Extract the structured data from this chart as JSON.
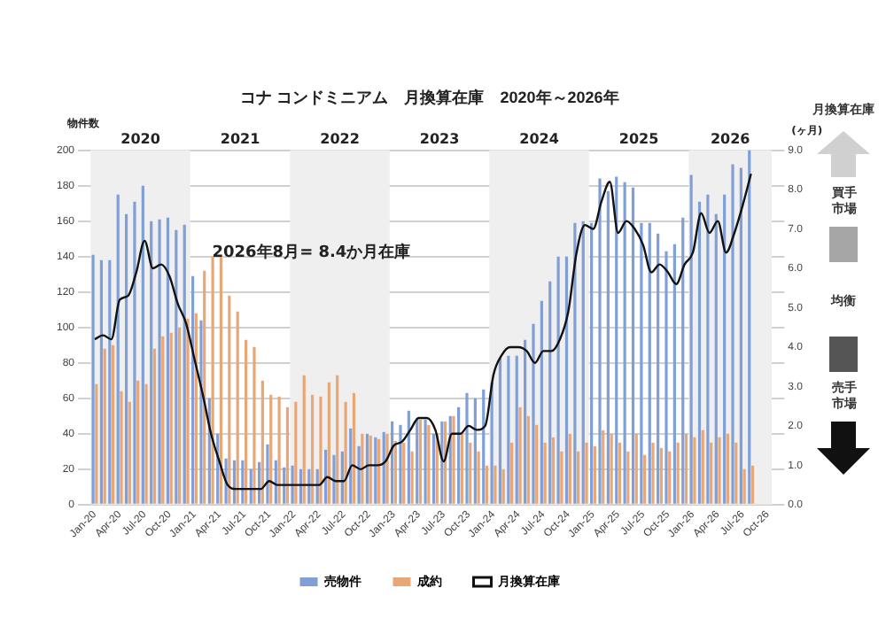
{
  "chart_data": {
    "type": "bar",
    "title": "コナ コンドミニアム　月換算在庫　2020年～2026年",
    "ylabel": "物件数",
    "y2label": "(ヶ月)",
    "annotations": [
      "2026年8月= 8.4か月在庫",
      "月換算在庫",
      "買手市場",
      "均衡",
      "売手市場",
      "2021",
      "2023",
      "2025"
    ],
    "x": [
      "2020-01",
      "2020-02",
      "2020-03",
      "2020-04",
      "2020-05",
      "2020-06",
      "2020-07",
      "2020-08",
      "2020-09",
      "2020-10",
      "2020-11",
      "2020-12",
      "2021-01",
      "2021-02",
      "2021-03",
      "2021-04",
      "2021-05",
      "2021-06",
      "2021-07",
      "2021-08",
      "2021-09",
      "2021-10",
      "2021-11",
      "2021-12",
      "2022-01",
      "2022-02",
      "2022-03",
      "2022-04",
      "2022-05",
      "2022-06",
      "2022-07",
      "2022-08",
      "2022-09",
      "2022-10",
      "2022-11",
      "2022-12",
      "2023-01",
      "2023-02",
      "2023-03",
      "2023-04",
      "2023-05",
      "2023-06",
      "2023-07",
      "2023-08",
      "2023-09",
      "2023-10",
      "2023-11",
      "2023-12",
      "2024-01",
      "2024-02",
      "2024-03",
      "2024-04",
      "2024-05",
      "2024-06",
      "2024-07",
      "2024-08",
      "2024-09",
      "2024-10",
      "2024-11",
      "2024-12",
      "2025-01",
      "2025-02",
      "2025-03",
      "2025-04",
      "2025-05",
      "2025-06",
      "2025-07",
      "2025-08",
      "2025-09",
      "2025-10",
      "2025-11",
      "2025-12",
      "2026-01",
      "2026-02",
      "2026-03",
      "2026-04",
      "2026-05",
      "2026-06",
      "2026-07",
      "2026-08"
    ],
    "series": [
      {
        "name": "売物件",
        "color": "#7f9fd6",
        "values": [
          141,
          138,
          138,
          175,
          164,
          171,
          180,
          160,
          161,
          162,
          155,
          158,
          129,
          104,
          60,
          40,
          26,
          25,
          25,
          20,
          24,
          34,
          25,
          21,
          22,
          20,
          20,
          20,
          31,
          28,
          30,
          43,
          33,
          40,
          38,
          41,
          47,
          45,
          53,
          49,
          48,
          40,
          47,
          50,
          55,
          63,
          60,
          65,
          69,
          83,
          84,
          84,
          93,
          102,
          115,
          126,
          140,
          140,
          159,
          160,
          159,
          184,
          177,
          185,
          182,
          179,
          159,
          159,
          153,
          143,
          147,
          162,
          186,
          171,
          175,
          164,
          175,
          192,
          190,
          200
        ]
      },
      {
        "name": "成約",
        "color": "#e9a677",
        "values": [
          68,
          88,
          90,
          64,
          58,
          70,
          68,
          88,
          95,
          97,
          100,
          105,
          108,
          132,
          140,
          141,
          118,
          109,
          93,
          89,
          70,
          62,
          61,
          55,
          58,
          73,
          62,
          61,
          69,
          73,
          58,
          63,
          40,
          39,
          37,
          40,
          36,
          35,
          30,
          48,
          45,
          40,
          47,
          50,
          40,
          35,
          30,
          22,
          22,
          20,
          35,
          55,
          50,
          45,
          35,
          38,
          30,
          40,
          30,
          35,
          33,
          42,
          40,
          35,
          30,
          40,
          28,
          35,
          32,
          30,
          35,
          40,
          38,
          42,
          35,
          38,
          40,
          35,
          20,
          22
        ]
      },
      {
        "name": "月換算在庫",
        "type": "line",
        "axis": "y2",
        "color": "#111111",
        "values": [
          4.2,
          4.3,
          4.2,
          5.2,
          5.3,
          5.9,
          6.7,
          6.0,
          6.1,
          5.8,
          5.1,
          4.6,
          3.7,
          2.8,
          1.8,
          1.1,
          0.5,
          0.4,
          0.4,
          0.4,
          0.4,
          0.6,
          0.5,
          0.5,
          0.5,
          0.5,
          0.5,
          0.5,
          0.7,
          0.6,
          0.6,
          1.0,
          0.9,
          1.0,
          1.0,
          1.1,
          1.5,
          1.6,
          1.9,
          2.2,
          2.2,
          1.9,
          1.1,
          1.8,
          1.8,
          2.0,
          1.9,
          2.0,
          3.3,
          3.8,
          4.0,
          4.0,
          3.9,
          3.6,
          3.9,
          3.9,
          4.2,
          4.9,
          6.4,
          7.1,
          7.0,
          7.7,
          8.2,
          6.9,
          7.2,
          7.0,
          6.6,
          5.9,
          6.1,
          5.9,
          5.6,
          6.1,
          6.4,
          7.4,
          6.9,
          7.2,
          6.4,
          6.9,
          7.6,
          8.4
        ]
      }
    ],
    "xlim": [
      "2020-01-01",
      "2026-11-01"
    ],
    "xticks": [
      {
        "value": "2020-01",
        "label": "Jan-20"
      },
      {
        "value": "2020-04",
        "label": "Apr-20"
      },
      {
        "value": "2020-07",
        "label": "Jul-20"
      },
      {
        "value": "2020-10",
        "label": "Oct-20"
      },
      {
        "value": "2021-01",
        "label": "Jan-21"
      },
      {
        "value": "2021-04",
        "label": "Apr-21"
      },
      {
        "value": "2021-07",
        "label": "Jul-21"
      },
      {
        "value": "2021-10",
        "label": "Oct-21"
      },
      {
        "value": "2022-01",
        "label": "Jan-22"
      },
      {
        "value": "2022-04",
        "label": "Apr-22"
      },
      {
        "value": "2022-07",
        "label": "Jul-22"
      },
      {
        "value": "2022-10",
        "label": "Oct-22"
      },
      {
        "value": "2023-01",
        "label": "Jan-23"
      },
      {
        "value": "2023-04",
        "label": "Apr-23"
      },
      {
        "value": "2023-07",
        "label": "Jul-23"
      },
      {
        "value": "2023-10",
        "label": "Oct-23"
      },
      {
        "value": "2024-01",
        "label": "Jan-24"
      },
      {
        "value": "2024-04",
        "label": "Apr-24"
      },
      {
        "value": "2024-07",
        "label": "Jul-24"
      },
      {
        "value": "2024-10",
        "label": "Oct-24"
      },
      {
        "value": "2025-01",
        "label": "Jan-25"
      },
      {
        "value": "2025-04",
        "label": "Apr-25"
      },
      {
        "value": "2025-07",
        "label": "Jul-25"
      },
      {
        "value": "2025-10",
        "label": "Oct-25"
      },
      {
        "value": "2026-01",
        "label": "Jan-26"
      },
      {
        "value": "2026-04",
        "label": "Apr-26"
      },
      {
        "value": "2026-07",
        "label": "Jul-26"
      },
      {
        "value": "2026-10",
        "label": "Oct-26"
      }
    ],
    "ylim": [
      0,
      200
    ],
    "yticks": [
      0,
      20,
      40,
      60,
      80,
      100,
      120,
      140,
      160,
      180,
      200
    ],
    "y2lim": [
      0,
      9
    ],
    "y2ticks": [
      {
        "value": 0,
        "label": "0.0"
      },
      {
        "value": 1,
        "label": "1.0"
      },
      {
        "value": 2,
        "label": "2.0"
      },
      {
        "value": 3,
        "label": "3.0"
      },
      {
        "value": 4,
        "label": "4.0"
      },
      {
        "value": 5,
        "label": "5.0"
      },
      {
        "value": 6,
        "label": "6.0"
      },
      {
        "value": 7,
        "label": "7.0"
      },
      {
        "value": 8,
        "label": "8.0"
      },
      {
        "value": 9,
        "label": "9.0"
      }
    ],
    "bands": [
      {
        "axis": "x",
        "from": "2020-01-01",
        "to": "2021-01-01",
        "label": "2020",
        "color": "#efefef"
      },
      {
        "axis": "x",
        "from": "2022-01-01",
        "to": "2023-01-01",
        "label": "2022",
        "color": "#efefef"
      },
      {
        "axis": "x",
        "from": "2024-01-01",
        "to": "2025-01-01",
        "label": "2024",
        "color": "#efefef"
      },
      {
        "axis": "x",
        "from": "2026-01-01",
        "to": "2026-11-01",
        "label": "2026",
        "color": "#efefef"
      }
    ],
    "grid": "y",
    "legend": "bottom",
    "marker": "none"
  }
}
